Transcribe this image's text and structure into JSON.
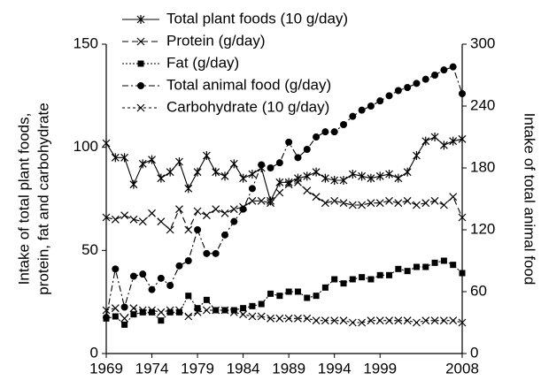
{
  "chart_data": {
    "type": "line",
    "x": [
      1969,
      1970,
      1971,
      1972,
      1973,
      1974,
      1975,
      1976,
      1977,
      1978,
      1979,
      1980,
      1981,
      1982,
      1983,
      1984,
      1985,
      1986,
      1987,
      1988,
      1989,
      1990,
      1991,
      1992,
      1993,
      1994,
      1995,
      1996,
      1997,
      1998,
      1999,
      2000,
      2001,
      2002,
      2003,
      2004,
      2005,
      2006,
      2007,
      2008
    ],
    "xlim": [
      1969,
      2008
    ],
    "xticks": [
      1969,
      1974,
      1979,
      1984,
      1989,
      1994,
      1999,
      2008
    ],
    "ylim": [
      0,
      150
    ],
    "yticks": [
      0,
      50,
      100,
      150
    ],
    "y2lim": [
      0,
      300
    ],
    "y2ticks": [
      0,
      60,
      120,
      180,
      240,
      300
    ],
    "ylabel": [
      "Intake of total plant foods,",
      "protein, fat and carbohydrate"
    ],
    "y2label": "Intake of total animal food",
    "series": [
      {
        "name": "Total plant foods (10 g/day)",
        "color": "#000000",
        "dash": "none",
        "marker": "star",
        "values": [
          102,
          95,
          95,
          82,
          92,
          94,
          85,
          88,
          93,
          80,
          88,
          96,
          88,
          86,
          92,
          85,
          87,
          90,
          74,
          83,
          83,
          85,
          86,
          88,
          85,
          84,
          84,
          87,
          86,
          85,
          86,
          87,
          85,
          88,
          96,
          103,
          105,
          101,
          103,
          104
        ]
      },
      {
        "name": "Protein (g/day)",
        "color": "#000000",
        "dash": "7 4",
        "marker": "x",
        "values": [
          66,
          65,
          67,
          65,
          64,
          68,
          64,
          60,
          70,
          60,
          69,
          67,
          70,
          68,
          70,
          71,
          74,
          74,
          73,
          78,
          82,
          83,
          79,
          76,
          73,
          74,
          73,
          72,
          72,
          73,
          73,
          74,
          73,
          74,
          72,
          73,
          74,
          72,
          76,
          66
        ]
      },
      {
        "name": "Fat (g/day)",
        "color": "#000000",
        "dash": "2 2",
        "marker": "square",
        "values": [
          17,
          18,
          14,
          19,
          20,
          20,
          16,
          20,
          20,
          28,
          22,
          26,
          21,
          21,
          21,
          22,
          23,
          24,
          29,
          28,
          30,
          30,
          27,
          28,
          32,
          36,
          34,
          36,
          37,
          36,
          38,
          38,
          41,
          40,
          42,
          42,
          44,
          45,
          43,
          39
        ]
      },
      {
        "name": "Total animal food (g/day)",
        "color": "#000000",
        "dash": "7 3 2 3",
        "marker": "circle",
        "axis": "y2",
        "values": [
          35,
          82,
          45,
          75,
          77,
          62,
          73,
          66,
          85,
          90,
          120,
          97,
          97,
          115,
          128,
          140,
          160,
          183,
          180,
          185,
          205,
          190,
          198,
          210,
          215,
          215,
          222,
          230,
          236,
          240,
          245,
          250,
          255,
          258,
          262,
          266,
          270,
          275,
          278,
          252
        ]
      },
      {
        "name": "Carbohydrate (10 g/day)",
        "color": "#000000",
        "dash": "3 3",
        "marker": "x",
        "values": [
          21,
          22,
          17,
          22,
          21,
          21,
          20,
          21,
          21,
          18,
          20,
          21,
          21,
          21,
          20,
          19,
          18,
          18,
          17,
          17,
          17,
          17,
          17,
          16,
          16,
          16,
          16,
          15,
          15,
          16,
          16,
          16,
          16,
          16,
          15,
          16,
          16,
          16,
          16,
          15
        ]
      }
    ]
  }
}
